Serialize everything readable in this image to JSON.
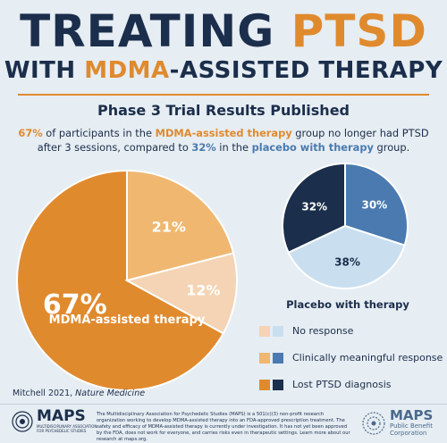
{
  "title": {
    "line1_part1": "TREATING ",
    "line1_part2": "PTSD",
    "line2_part1": "WITH ",
    "line2_part2": "MDMA",
    "line2_part3": "-ASSISTED THERAPY"
  },
  "subtitle": "Phase 3 Trial Results Published",
  "summary": {
    "pct_mdma": "67%",
    "t1": " of participants in the ",
    "group_mdma": "MDMA-assisted therapy",
    "t2": " group no longer had PTSD after 3 sessions, compared to ",
    "pct_placebo": "32%",
    "t3": " in the ",
    "group_placebo": "placebo with therapy",
    "t4": " group."
  },
  "colors": {
    "navy": "#1b2e4b",
    "orange": "#e08a2e",
    "mdma_no_response": "#f4d4b4",
    "mdma_meaningful": "#efb770",
    "mdma_lost": "#e08a2e",
    "placebo_no_response": "#c9dff0",
    "placebo_meaningful": "#4a7ab0",
    "placebo_lost": "#1b2e4b"
  },
  "chart_data": [
    {
      "type": "pie",
      "name": "MDMA-assisted therapy",
      "categories": [
        "Lost PTSD diagnosis",
        "Clinically meaningful response",
        "No response"
      ],
      "values": [
        67,
        21,
        12
      ],
      "labels": [
        "67%",
        "21%",
        "12%"
      ]
    },
    {
      "type": "pie",
      "name": "Placebo with therapy",
      "categories": [
        "Lost PTSD diagnosis",
        "Clinically meaningful response",
        "No response"
      ],
      "values": [
        32,
        30,
        38
      ],
      "labels": [
        "32%",
        "30%",
        "38%"
      ]
    }
  ],
  "legend": [
    {
      "label": "No response"
    },
    {
      "label": "Clinically meaningful response"
    },
    {
      "label": "Lost PTSD diagnosis"
    }
  ],
  "citation": {
    "author": "Mitchell 2021, ",
    "journal": "Nature Medicine"
  },
  "footer": {
    "logo_word": "MAPS",
    "logo_sub": "MULTIDISCIPLINARY ASSOCIATION FOR PSYCHEDELIC STUDIES",
    "disclaimer": "The Multidisciplinary Association for Psychedelic Studies (MAPS) is a 501(c)(3) non-profit research organization working to develop MDMA-assisted therapy into an FDA-approved prescription treatment. The safety and efficacy of MDMA-assisted therapy is currently under investigation. It has not yet been approved by the FDA, does not work for everyone, and carries risks even in therapeutic settings. Learn more about our research at maps.org.",
    "pbc_word": "MAPS",
    "pbc_sub1": "Public Benefit",
    "pbc_sub2": "Corporation"
  }
}
